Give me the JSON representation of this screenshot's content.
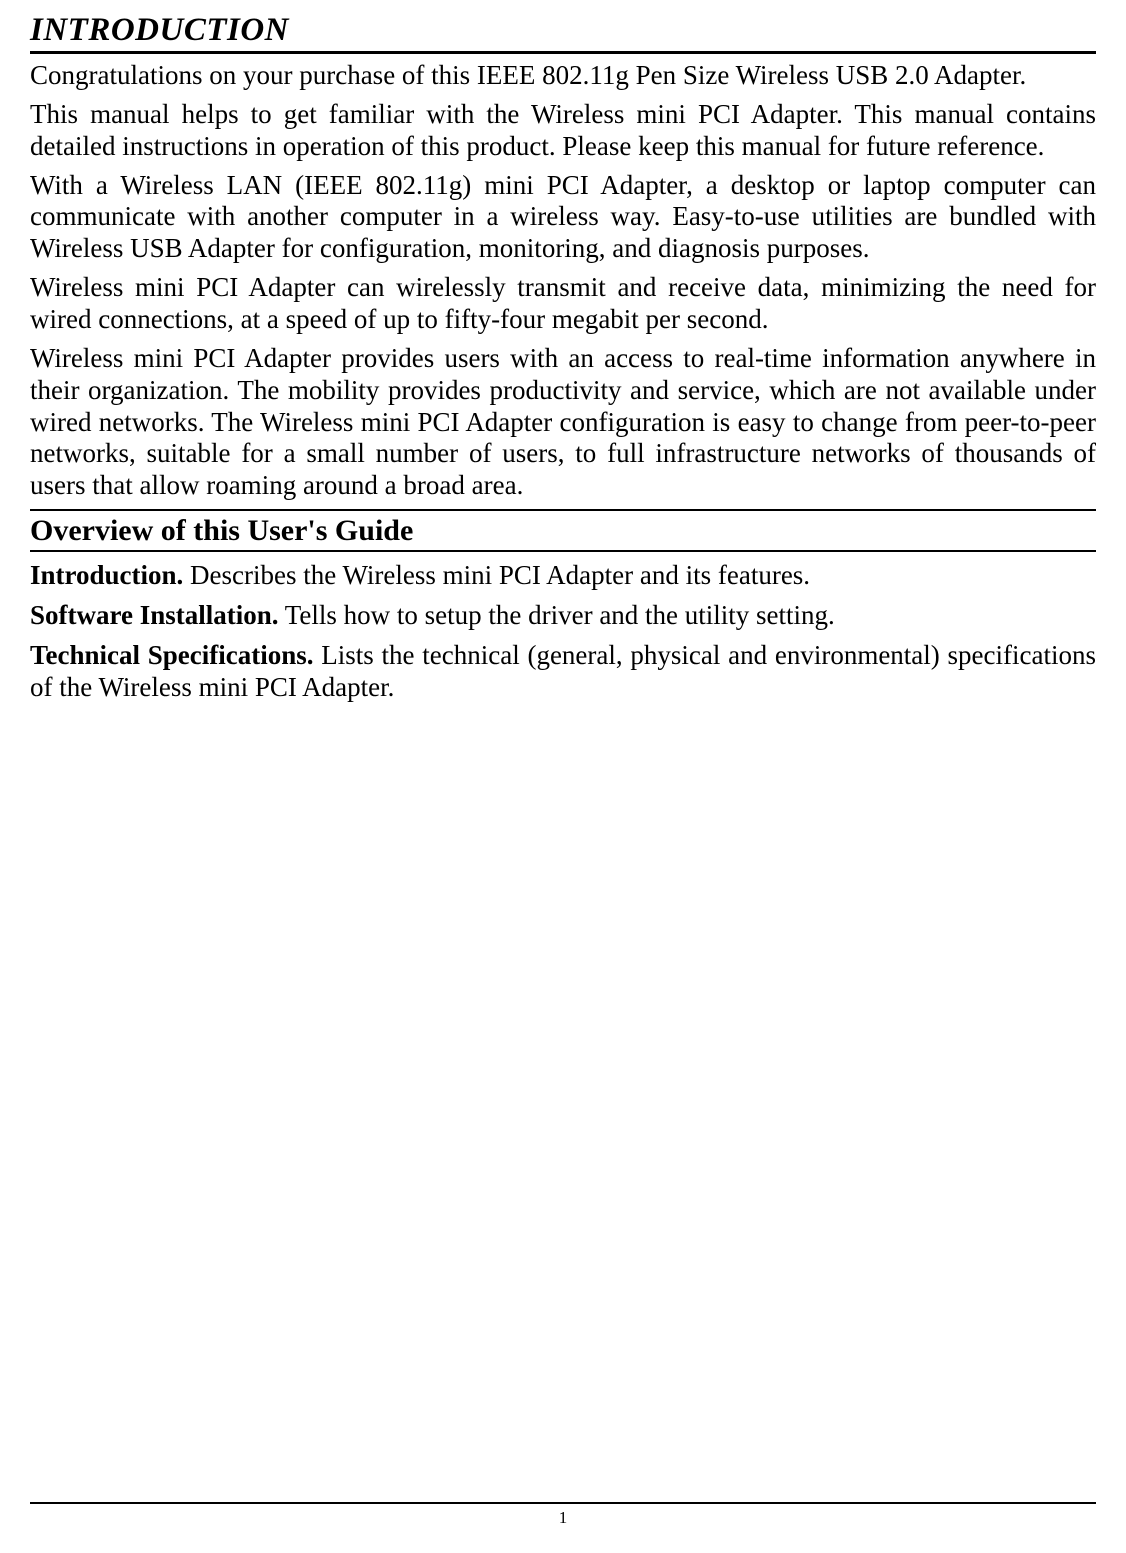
{
  "page": {
    "title": "INTRODUCTION",
    "paragraphs": {
      "p1": "Congratulations on your purchase of this IEEE 802.11g Pen Size Wireless USB 2.0 Adapter.",
      "p2": "This manual helps to get familiar with the Wireless mini PCI Adapter. This manual contains detailed instructions in operation of this product. Please keep this manual for future reference.",
      "p3": "With a Wireless LAN (IEEE 802.11g) mini PCI Adapter, a desktop or laptop computer can communicate with another computer in a wireless way. Easy-to-use utilities are bundled with Wireless USB Adapter for configuration, monitoring, and diagnosis purposes.",
      "p4": "Wireless mini PCI Adapter can wirelessly transmit and receive data, minimizing the need for wired connections, at a speed of up to fifty-four megabit per second.",
      "p5": "Wireless mini PCI Adapter provides users with an access to real-time information anywhere in their organization. The mobility provides productivity and service, which are not available under wired networks. The Wireless mini PCI Adapter configuration is easy to change from peer-to-peer networks, suitable for a small number of users, to full infrastructure networks of thousands of users that allow roaming around a broad area."
    },
    "overview": {
      "heading": "Overview of this User's Guide",
      "intro": {
        "lead": "Introduction.",
        "text": "  Describes the Wireless mini PCI Adapter and its features."
      },
      "software": {
        "lead": "Software Installation.",
        "text": "  Tells how to setup the driver and the utility setting."
      },
      "tech": {
        "lead": "Technical Specifications.",
        "text": " Lists the technical (general, physical and environmental) specifications of the Wireless mini PCI Adapter."
      }
    },
    "page_number": "1"
  },
  "styles": {
    "text_color": "#000000",
    "background_color": "#ffffff",
    "title_fontsize": 33,
    "body_fontsize": 27,
    "heading_fontsize": 30,
    "footer_fontsize": 17,
    "font_family": "Times New Roman"
  }
}
